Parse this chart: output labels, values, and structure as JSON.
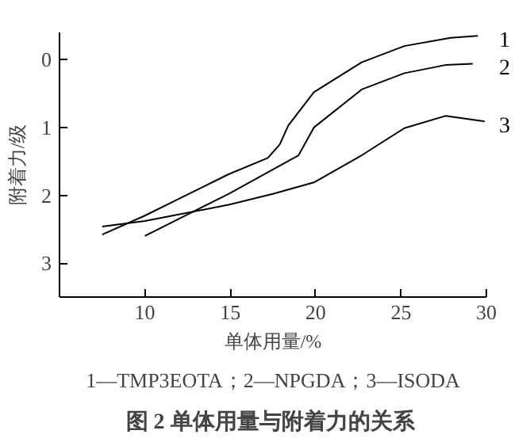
{
  "chart_data": {
    "type": "line",
    "title": "图 2  单体用量与附着力的关系",
    "xlabel": "单体用量/%",
    "ylabel": "附着力/级",
    "annotations": [
      "1—TMP3EOTA；2—NPGDA；3—ISODA"
    ],
    "xlim": [
      5,
      30
    ],
    "xticks": [
      10,
      15,
      20,
      25,
      30
    ],
    "ylim": [
      3.5,
      -0.4
    ],
    "yticks": [
      0,
      1,
      2,
      3
    ],
    "grid": false,
    "series": [
      {
        "name": "1",
        "color": "#000000",
        "x": [
          7.5,
          10,
          14.9,
          17.2,
          17.9,
          18.4,
          19.9,
          22.7,
          25.2,
          27.9,
          29.5
        ],
        "values": [
          2.58,
          2.3,
          1.69,
          1.45,
          1.25,
          0.97,
          0.48,
          0.04,
          -0.2,
          -0.32,
          -0.35
        ]
      },
      {
        "name": "2",
        "color": "#000000",
        "x": [
          10,
          14.9,
          19.0,
          19.9,
          22.7,
          25.2,
          27.6,
          29.2
        ],
        "values": [
          2.6,
          1.98,
          1.41,
          1.0,
          0.44,
          0.2,
          0.08,
          0.06
        ]
      },
      {
        "name": "3",
        "color": "#000000",
        "x": [
          7.5,
          10,
          14.9,
          17.5,
          19.9,
          22.7,
          25.2,
          27.6,
          29.9
        ],
        "values": [
          2.46,
          2.38,
          2.14,
          1.98,
          1.81,
          1.41,
          1.01,
          0.83,
          0.91
        ]
      }
    ]
  }
}
